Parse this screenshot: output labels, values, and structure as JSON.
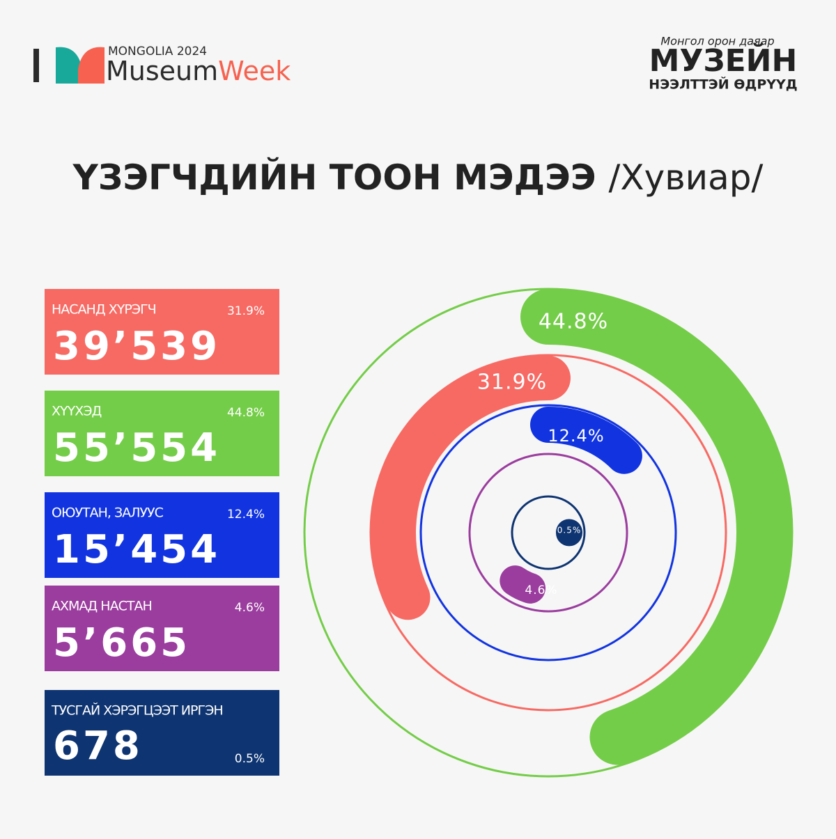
{
  "header": {
    "left_top": "MONGOLIA 2024",
    "left_a": "Museum",
    "left_b": "Week",
    "right_top": "Монгол орон даяар",
    "right_main": "МУЗЕЙН",
    "right_bottom": "НЭЭЛТТЭЙ ӨДРҮҮД"
  },
  "chart_data": {
    "type": "radial_bar",
    "title": "ҮЗЭГЧДИЙН ТООН МЭДЭЭ",
    "subtitle": "/Хувиар/",
    "categories": [
      "НАСАНД ХҮРЭГЧ",
      "ХҮҮХЭД",
      "ОЮУТАН, ЗАЛУУС",
      "АХМАД НАСТАН",
      "ТУСГАЙ ХЭРЭГЦЭЭТ ИРГЭН"
    ],
    "values": [
      31.9,
      44.8,
      12.4,
      4.6,
      0.5
    ],
    "value_labels": [
      "31.9%",
      "44.8%",
      "12.4%",
      "4.6%",
      "0.5%"
    ],
    "counts": [
      39539,
      55554,
      15454,
      5665,
      678
    ],
    "count_labels": [
      "39’539",
      "55’554",
      "15’454",
      "5’665",
      "678"
    ],
    "colors": [
      "#f76a63",
      "#74cd48",
      "#1234e0",
      "#9b3d9e",
      "#0e3471"
    ]
  }
}
